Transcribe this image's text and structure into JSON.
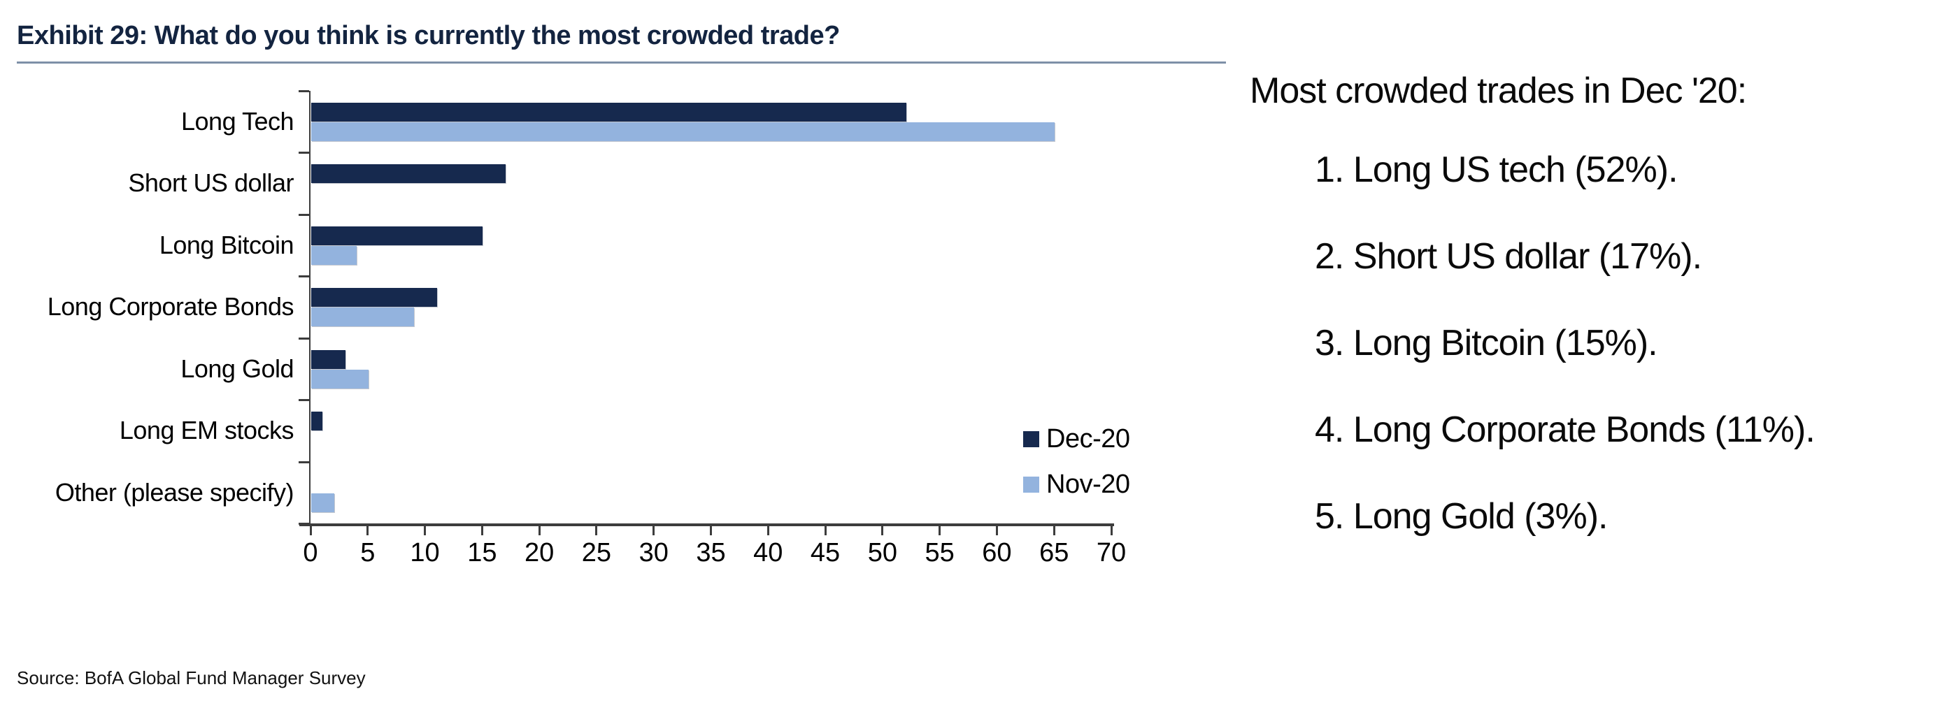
{
  "exhibit": {
    "title": "Exhibit 29: What do you think is currently the most crowded trade?",
    "source": "Source: BofA Global Fund Manager Survey"
  },
  "annotation": {
    "heading": "Most crowded trades in Dec '20:",
    "items": [
      "1. Long US tech (52%).",
      "2. Short US dollar (17%).",
      "3. Long Bitcoin (15%).",
      "4. Long Corporate Bonds (11%).",
      "5. Long Gold (3%)."
    ]
  },
  "chart_data": {
    "type": "bar",
    "orientation": "horizontal",
    "title": "",
    "xlabel": "",
    "ylabel": "",
    "categories": [
      "Long Tech",
      "Short US dollar",
      "Long Bitcoin",
      "Long Corporate Bonds",
      "Long Gold",
      "Long EM stocks",
      "Other (please specify)"
    ],
    "series": [
      {
        "name": "Dec-20",
        "color": "#16294e",
        "values": [
          52,
          17,
          15,
          11,
          3,
          1,
          0
        ]
      },
      {
        "name": "Nov-20",
        "color": "#93b3de",
        "values": [
          65,
          0,
          4,
          9,
          5,
          0,
          2
        ]
      }
    ],
    "xlim": [
      0,
      70
    ],
    "xticks": [
      0,
      5,
      10,
      15,
      20,
      25,
      30,
      35,
      40,
      45,
      50,
      55,
      60,
      65,
      70
    ],
    "grid": false,
    "legend_position": "inside-right"
  },
  "colors": {
    "title": "#132440",
    "rule": "#7e90a8",
    "axis": "#3d3d3d",
    "dec20": "#16294e",
    "nov20": "#93b3de"
  }
}
